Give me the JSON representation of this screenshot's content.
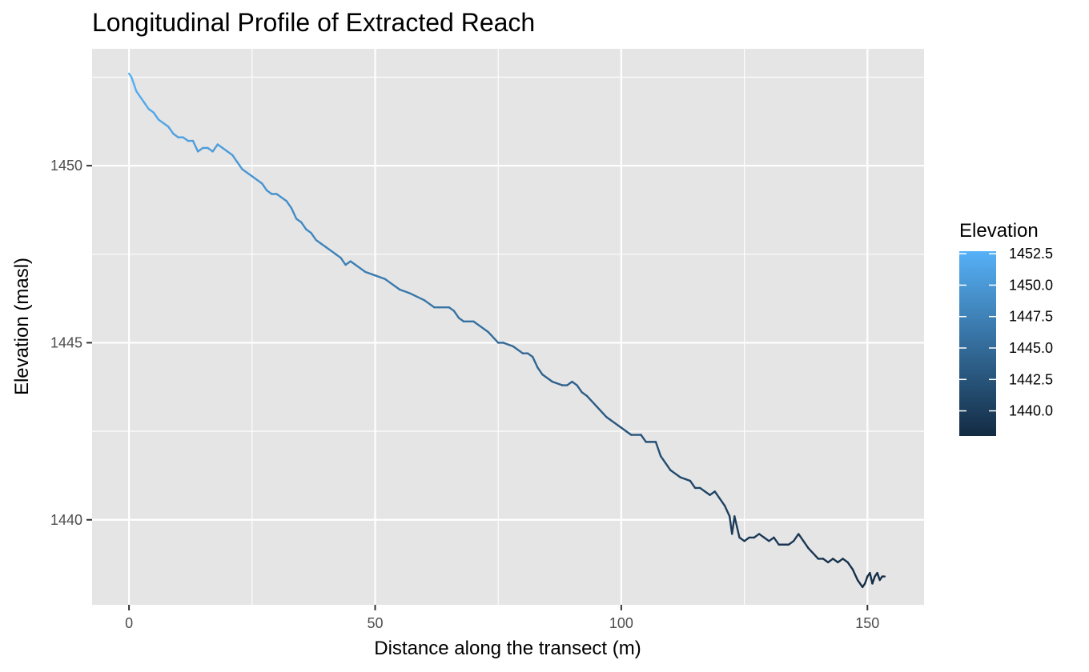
{
  "chart_data": {
    "type": "line",
    "title": "Longitudinal Profile of Extracted Reach",
    "xlabel": "Distance along the transect (m)",
    "ylabel": "Elevation (masl)",
    "xlim": [
      -7.5,
      161.5
    ],
    "ylim": [
      1437.6,
      1453.3
    ],
    "x_ticks": [
      0,
      50,
      100,
      150
    ],
    "y_ticks": [
      1440,
      1445,
      1450
    ],
    "grid": true,
    "panel_background": "#e5e5e5",
    "gridline_color": "#ffffff",
    "legend": {
      "title": "Elevation",
      "placement": "right",
      "labels": [
        "1452.5",
        "1450.0",
        "1447.5",
        "1445.0",
        "1442.5",
        "1440.0"
      ],
      "values": [
        1452.5,
        1450.0,
        1447.5,
        1445.0,
        1442.5,
        1440.0
      ],
      "range": [
        1438.0,
        1452.7
      ],
      "color_low": "#132b43",
      "color_high": "#56b1f7"
    },
    "series": [
      {
        "x": [
          0,
          0.5,
          1,
          1.5,
          2,
          3,
          4,
          5,
          6,
          7,
          8,
          9,
          10,
          11,
          12,
          13,
          14,
          15,
          15.5,
          16,
          17,
          18,
          19,
          20,
          21,
          22,
          23,
          24,
          25,
          26,
          27,
          28,
          29,
          30,
          31,
          32,
          33,
          34,
          35,
          36,
          37,
          38,
          39,
          40,
          41,
          42,
          43,
          44,
          45,
          46,
          47,
          48,
          50,
          52,
          53,
          55,
          57,
          60,
          62,
          63,
          65,
          66,
          67,
          68,
          70,
          72,
          73,
          75,
          76,
          78,
          80,
          81,
          82,
          83,
          84,
          86,
          88,
          89,
          90,
          91,
          92,
          93,
          95,
          97,
          98,
          100,
          101,
          102,
          104,
          105,
          107,
          108,
          109,
          110,
          111,
          112,
          114,
          115,
          116,
          117,
          118,
          119,
          120,
          121,
          122,
          122.5,
          123,
          123.5,
          124,
          125,
          126,
          127,
          128,
          129,
          130,
          131,
          132,
          134,
          135,
          136,
          137,
          138,
          140,
          141,
          142,
          143,
          144,
          145,
          146,
          147,
          148,
          149,
          149.5,
          150,
          150.5,
          151,
          151.5,
          152,
          152.5,
          153,
          153.5
        ],
        "y": [
          1452.6,
          1452.5,
          1452.3,
          1452.1,
          1452.0,
          1451.8,
          1451.6,
          1451.5,
          1451.3,
          1451.2,
          1451.1,
          1450.9,
          1450.8,
          1450.8,
          1450.7,
          1450.7,
          1450.4,
          1450.5,
          1450.5,
          1450.5,
          1450.4,
          1450.6,
          1450.5,
          1450.4,
          1450.3,
          1450.1,
          1449.9,
          1449.8,
          1449.7,
          1449.6,
          1449.5,
          1449.3,
          1449.2,
          1449.2,
          1449.1,
          1449.0,
          1448.8,
          1448.5,
          1448.4,
          1448.2,
          1448.1,
          1447.9,
          1447.8,
          1447.7,
          1447.6,
          1447.5,
          1447.4,
          1447.2,
          1447.3,
          1447.2,
          1447.1,
          1447.0,
          1446.9,
          1446.8,
          1446.7,
          1446.5,
          1446.4,
          1446.2,
          1446.0,
          1446.0,
          1446.0,
          1445.9,
          1445.7,
          1445.6,
          1445.6,
          1445.4,
          1445.3,
          1445.0,
          1445.0,
          1444.9,
          1444.7,
          1444.7,
          1444.6,
          1444.3,
          1444.1,
          1443.9,
          1443.8,
          1443.8,
          1443.9,
          1443.8,
          1443.6,
          1443.5,
          1443.2,
          1442.9,
          1442.8,
          1442.6,
          1442.5,
          1442.4,
          1442.4,
          1442.2,
          1442.2,
          1441.8,
          1441.6,
          1441.4,
          1441.3,
          1441.2,
          1441.1,
          1440.9,
          1440.9,
          1440.8,
          1440.7,
          1440.8,
          1440.6,
          1440.4,
          1440.1,
          1439.6,
          1440.1,
          1439.8,
          1439.5,
          1439.4,
          1439.5,
          1439.5,
          1439.6,
          1439.5,
          1439.4,
          1439.5,
          1439.3,
          1439.3,
          1439.4,
          1439.6,
          1439.4,
          1439.2,
          1438.9,
          1438.9,
          1438.8,
          1438.9,
          1438.8,
          1438.9,
          1438.8,
          1438.6,
          1438.3,
          1438.1,
          1438.2,
          1438.4,
          1438.5,
          1438.2,
          1438.4,
          1438.5,
          1438.3,
          1438.4,
          1438.4
        ]
      }
    ]
  }
}
